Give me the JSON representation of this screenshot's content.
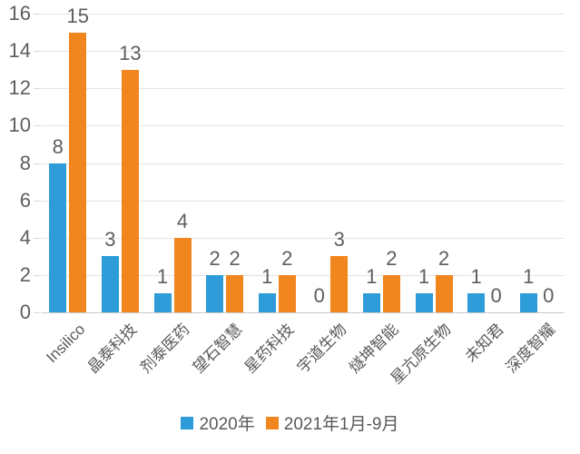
{
  "chart_data": {
    "type": "bar",
    "title": "",
    "categories": [
      "Insilico",
      "晶泰科技",
      "剂泰医药",
      "望石智慧",
      "星药科技",
      "宇道生物",
      "燧坤智能",
      "星亢原生物",
      "未知君",
      "深度智耀"
    ],
    "series": [
      {
        "name": "2020年",
        "color": "#2d9cd8",
        "values": [
          8,
          3,
          1,
          2,
          1,
          0,
          1,
          1,
          1,
          1
        ]
      },
      {
        "name": "2021年1月-9月",
        "color": "#f2861e",
        "values": [
          15,
          13,
          4,
          2,
          2,
          3,
          2,
          2,
          0,
          0
        ]
      }
    ],
    "ylim": [
      0,
      16
    ],
    "ytick_step": 2,
    "yticks": [
      0,
      2,
      4,
      6,
      8,
      10,
      12,
      14,
      16
    ],
    "grid": "horizontal",
    "data_labels": true,
    "legend_position": "bottom-center",
    "colors": {
      "label_gray": "#5e5e5e",
      "gridline": "#e4e4e4",
      "axis_line": "#c9c9c9",
      "background": "#ffffff"
    }
  }
}
